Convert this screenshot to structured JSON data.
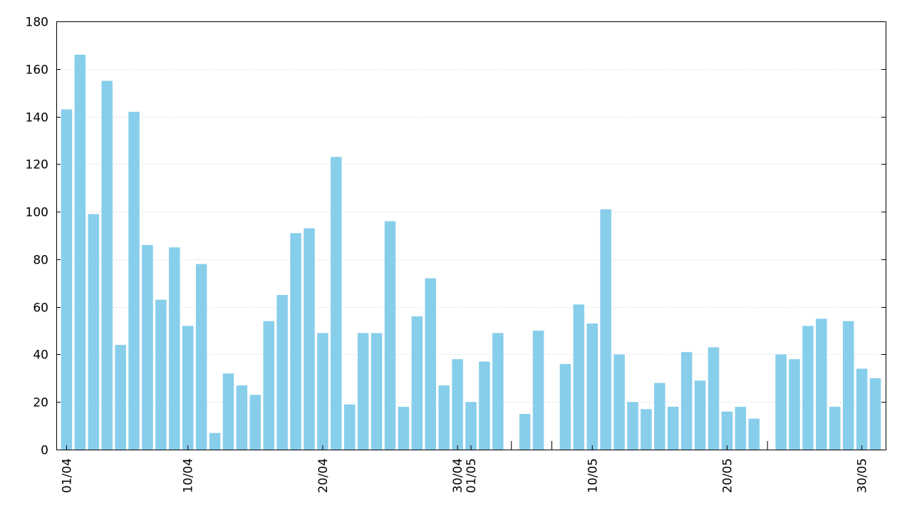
{
  "chart_data": {
    "type": "bar",
    "title": "",
    "xlabel": "",
    "ylabel": "",
    "ylim": [
      0,
      180
    ],
    "yticks": [
      0,
      20,
      40,
      60,
      80,
      100,
      120,
      140,
      160,
      180
    ],
    "ytick_labels": [
      "0",
      "20",
      "40",
      "60",
      "80",
      "100",
      "120",
      "140",
      "160",
      "180"
    ],
    "grid": "horizontal dotted",
    "bar_color": "#87CEEB",
    "categories": [
      "01/04",
      "02/04",
      "03/04",
      "04/04",
      "05/04",
      "06/04",
      "07/04",
      "08/04",
      "09/04",
      "10/04",
      "11/04",
      "12/04",
      "13/04",
      "14/04",
      "15/04",
      "16/04",
      "17/04",
      "18/04",
      "19/04",
      "20/04",
      "21/04",
      "22/04",
      "23/04",
      "24/04",
      "25/04",
      "26/04",
      "27/04",
      "28/04",
      "29/04",
      "30/04",
      "01/05",
      "02/05",
      "03/05",
      "04/05",
      "05/05",
      "06/05",
      "07/05",
      "08/05",
      "09/05",
      "10/05",
      "11/05",
      "12/05",
      "13/05",
      "14/05",
      "15/05",
      "16/05",
      "17/05",
      "18/05",
      "19/05",
      "20/05",
      "21/05",
      "22/05",
      "23/05",
      "24/05",
      "25/05",
      "26/05",
      "27/05",
      "28/05",
      "29/05",
      "30/05",
      "31/05"
    ],
    "values": [
      143,
      166,
      99,
      155,
      44,
      142,
      86,
      63,
      85,
      52,
      78,
      7,
      32,
      27,
      23,
      54,
      65,
      91,
      93,
      49,
      123,
      19,
      49,
      49,
      96,
      18,
      56,
      72,
      27,
      38,
      20,
      37,
      49,
      null,
      15,
      50,
      null,
      36,
      61,
      53,
      101,
      40,
      20,
      17,
      28,
      18,
      41,
      29,
      43,
      16,
      18,
      13,
      null,
      40,
      38,
      52,
      55,
      18,
      54,
      34,
      30
    ],
    "xtick_labels": [
      {
        "index": 0,
        "label": "01/04"
      },
      {
        "index": 9,
        "label": "10/04"
      },
      {
        "index": 19,
        "label": "20/04"
      },
      {
        "index": 29,
        "label": "30/04"
      },
      {
        "index": 30,
        "label": "01/05"
      },
      {
        "index": 39,
        "label": "10/05"
      },
      {
        "index": 49,
        "label": "20/05"
      },
      {
        "index": 59,
        "label": "30/05"
      }
    ]
  }
}
